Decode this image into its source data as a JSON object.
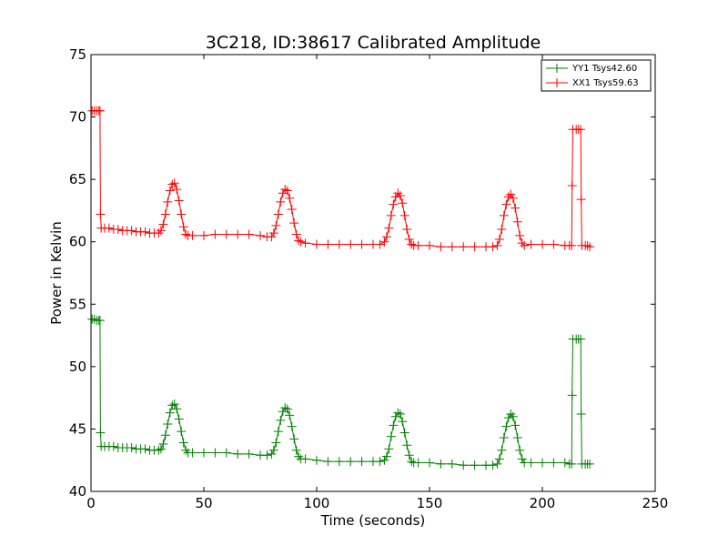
{
  "chart_data": {
    "type": "line",
    "title": "3C218, ID:38617 Calibrated Amplitude",
    "xlabel": "Time (seconds)",
    "ylabel": "Power in Kelvin",
    "xlim": [
      0,
      250
    ],
    "ylim": [
      40,
      75
    ],
    "xticks": [
      0,
      50,
      100,
      150,
      200,
      250
    ],
    "yticks": [
      40,
      45,
      50,
      55,
      60,
      65,
      70,
      75
    ],
    "xtick_labels": [
      "0",
      "50",
      "100",
      "150",
      "200",
      "250"
    ],
    "ytick_labels": [
      "40",
      "45",
      "50",
      "55",
      "60",
      "65",
      "70",
      "75"
    ],
    "grid": false,
    "legend_position": "top-right",
    "marker": "+",
    "series": [
      {
        "name": "YY1 Tsys42.60",
        "color": "#008000",
        "points": [
          [
            0.5,
            53.8
          ],
          [
            1.5,
            53.8
          ],
          [
            2.5,
            53.7
          ],
          [
            3.5,
            53.7
          ],
          [
            4.0,
            53.7
          ],
          [
            4.2,
            44.7
          ],
          [
            4.5,
            43.6
          ],
          [
            6,
            43.6
          ],
          [
            8,
            43.6
          ],
          [
            10,
            43.6
          ],
          [
            12,
            43.5
          ],
          [
            14,
            43.5
          ],
          [
            16,
            43.5
          ],
          [
            18,
            43.5
          ],
          [
            20,
            43.4
          ],
          [
            22,
            43.4
          ],
          [
            24,
            43.4
          ],
          [
            26,
            43.3
          ],
          [
            28,
            43.3
          ],
          [
            30,
            43.3
          ],
          [
            31,
            43.4
          ],
          [
            32,
            43.8
          ],
          [
            33,
            44.5
          ],
          [
            34,
            45.4
          ],
          [
            35,
            46.3
          ],
          [
            36,
            46.9
          ],
          [
            37,
            47.0
          ],
          [
            38,
            46.6
          ],
          [
            39,
            45.8
          ],
          [
            40,
            44.8
          ],
          [
            41,
            43.9
          ],
          [
            42,
            43.3
          ],
          [
            43,
            43.1
          ],
          [
            45,
            43.1
          ],
          [
            50,
            43.1
          ],
          [
            55,
            43.1
          ],
          [
            60,
            43.1
          ],
          [
            65,
            43.0
          ],
          [
            70,
            43.0
          ],
          [
            75,
            42.9
          ],
          [
            78,
            42.9
          ],
          [
            80,
            43.0
          ],
          [
            81,
            43.3
          ],
          [
            82,
            43.9
          ],
          [
            83,
            44.8
          ],
          [
            84,
            45.7
          ],
          [
            85,
            46.4
          ],
          [
            86,
            46.7
          ],
          [
            87,
            46.6
          ],
          [
            88,
            46.1
          ],
          [
            89,
            45.2
          ],
          [
            90,
            44.2
          ],
          [
            91,
            43.3
          ],
          [
            92,
            42.8
          ],
          [
            93,
            42.6
          ],
          [
            95,
            42.6
          ],
          [
            100,
            42.5
          ],
          [
            105,
            42.4
          ],
          [
            110,
            42.4
          ],
          [
            115,
            42.4
          ],
          [
            120,
            42.4
          ],
          [
            125,
            42.4
          ],
          [
            128,
            42.4
          ],
          [
            130,
            42.5
          ],
          [
            131,
            42.8
          ],
          [
            132,
            43.4
          ],
          [
            133,
            44.4
          ],
          [
            134,
            45.3
          ],
          [
            135,
            46.0
          ],
          [
            136,
            46.3
          ],
          [
            137,
            46.2
          ],
          [
            138,
            45.6
          ],
          [
            139,
            44.7
          ],
          [
            140,
            43.7
          ],
          [
            141,
            42.9
          ],
          [
            142,
            42.4
          ],
          [
            143,
            42.3
          ],
          [
            145,
            42.3
          ],
          [
            150,
            42.3
          ],
          [
            155,
            42.2
          ],
          [
            160,
            42.2
          ],
          [
            165,
            42.1
          ],
          [
            170,
            42.1
          ],
          [
            175,
            42.1
          ],
          [
            178,
            42.1
          ],
          [
            180,
            42.2
          ],
          [
            181,
            42.6
          ],
          [
            182,
            43.3
          ],
          [
            183,
            44.3
          ],
          [
            184,
            45.2
          ],
          [
            185,
            45.9
          ],
          [
            186,
            46.2
          ],
          [
            187,
            46.0
          ],
          [
            188,
            45.3
          ],
          [
            189,
            44.3
          ],
          [
            190,
            43.3
          ],
          [
            191,
            42.6
          ],
          [
            192,
            42.3
          ],
          [
            195,
            42.3
          ],
          [
            200,
            42.3
          ],
          [
            205,
            42.3
          ],
          [
            210,
            42.3
          ],
          [
            212,
            42.2
          ],
          [
            213.0,
            42.2
          ],
          [
            213.2,
            47.7
          ],
          [
            213.5,
            52.2
          ],
          [
            215,
            52.2
          ],
          [
            216,
            52.2
          ],
          [
            217.0,
            52.2
          ],
          [
            217.2,
            46.2
          ],
          [
            217.5,
            42.2
          ],
          [
            219,
            42.2
          ],
          [
            220,
            42.2
          ],
          [
            221,
            42.2
          ]
        ]
      },
      {
        "name": "XX1 Tsys59.63",
        "color": "#ff0000",
        "points": [
          [
            0.5,
            70.5
          ],
          [
            1.5,
            70.5
          ],
          [
            2.5,
            70.5
          ],
          [
            3.5,
            70.5
          ],
          [
            4.0,
            70.5
          ],
          [
            4.2,
            62.2
          ],
          [
            4.5,
            61.1
          ],
          [
            6,
            61.1
          ],
          [
            8,
            61.1
          ],
          [
            10,
            61.0
          ],
          [
            12,
            61.0
          ],
          [
            14,
            60.9
          ],
          [
            16,
            60.9
          ],
          [
            18,
            60.9
          ],
          [
            20,
            60.8
          ],
          [
            22,
            60.8
          ],
          [
            24,
            60.8
          ],
          [
            26,
            60.7
          ],
          [
            28,
            60.7
          ],
          [
            30,
            60.7
          ],
          [
            31,
            60.9
          ],
          [
            32,
            61.4
          ],
          [
            33,
            62.2
          ],
          [
            34,
            63.2
          ],
          [
            35,
            64.1
          ],
          [
            36,
            64.6
          ],
          [
            37,
            64.7
          ],
          [
            38,
            64.2
          ],
          [
            39,
            63.3
          ],
          [
            40,
            62.2
          ],
          [
            41,
            61.2
          ],
          [
            42,
            60.6
          ],
          [
            43,
            60.5
          ],
          [
            45,
            60.5
          ],
          [
            50,
            60.5
          ],
          [
            55,
            60.6
          ],
          [
            60,
            60.6
          ],
          [
            65,
            60.6
          ],
          [
            70,
            60.6
          ],
          [
            75,
            60.5
          ],
          [
            78,
            60.4
          ],
          [
            80,
            60.4
          ],
          [
            81,
            60.7
          ],
          [
            82,
            61.3
          ],
          [
            83,
            62.2
          ],
          [
            84,
            63.2
          ],
          [
            85,
            63.9
          ],
          [
            86,
            64.2
          ],
          [
            87,
            64.1
          ],
          [
            88,
            63.5
          ],
          [
            89,
            62.6
          ],
          [
            90,
            61.5
          ],
          [
            91,
            60.6
          ],
          [
            92,
            60.1
          ],
          [
            93,
            60.0
          ],
          [
            95,
            59.9
          ],
          [
            100,
            59.8
          ],
          [
            105,
            59.8
          ],
          [
            110,
            59.8
          ],
          [
            115,
            59.8
          ],
          [
            120,
            59.8
          ],
          [
            125,
            59.8
          ],
          [
            128,
            59.8
          ],
          [
            130,
            60.0
          ],
          [
            131,
            60.4
          ],
          [
            132,
            61.1
          ],
          [
            133,
            62.1
          ],
          [
            134,
            63.0
          ],
          [
            135,
            63.6
          ],
          [
            136,
            63.9
          ],
          [
            137,
            63.7
          ],
          [
            138,
            63.1
          ],
          [
            139,
            62.1
          ],
          [
            140,
            61.0
          ],
          [
            141,
            60.2
          ],
          [
            142,
            59.8
          ],
          [
            143,
            59.7
          ],
          [
            145,
            59.7
          ],
          [
            150,
            59.7
          ],
          [
            155,
            59.6
          ],
          [
            160,
            59.6
          ],
          [
            165,
            59.6
          ],
          [
            170,
            59.6
          ],
          [
            175,
            59.6
          ],
          [
            178,
            59.6
          ],
          [
            180,
            59.7
          ],
          [
            181,
            60.2
          ],
          [
            182,
            61.0
          ],
          [
            183,
            62.1
          ],
          [
            184,
            63.0
          ],
          [
            185,
            63.6
          ],
          [
            186,
            63.8
          ],
          [
            187,
            63.5
          ],
          [
            188,
            62.7
          ],
          [
            189,
            61.6
          ],
          [
            190,
            60.5
          ],
          [
            191,
            59.9
          ],
          [
            192,
            59.7
          ],
          [
            195,
            59.8
          ],
          [
            200,
            59.8
          ],
          [
            205,
            59.8
          ],
          [
            210,
            59.7
          ],
          [
            212,
            59.7
          ],
          [
            213.0,
            59.7
          ],
          [
            213.2,
            64.5
          ],
          [
            213.5,
            69.0
          ],
          [
            215,
            69.0
          ],
          [
            216,
            69.0
          ],
          [
            217.0,
            69.0
          ],
          [
            217.2,
            63.4
          ],
          [
            217.5,
            59.7
          ],
          [
            219,
            59.7
          ],
          [
            220,
            59.7
          ],
          [
            221,
            59.6
          ]
        ]
      }
    ]
  }
}
